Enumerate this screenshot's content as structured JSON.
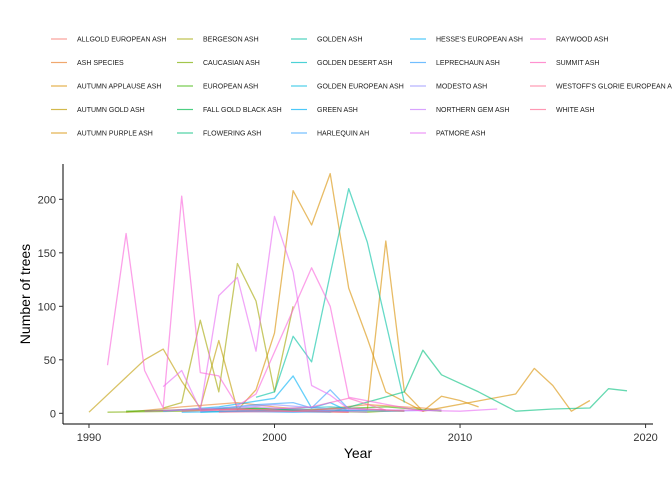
{
  "chart_data": {
    "type": "line",
    "xlabel": "Year",
    "ylabel": "Number of trees",
    "xlim": [
      1988.6,
      2020.4
    ],
    "ylim": [
      -10,
      233
    ],
    "x_ticks": [
      1990,
      2000,
      2010,
      2020
    ],
    "y_ticks": [
      0,
      50,
      100,
      150,
      200
    ],
    "grid": false,
    "legend_position": "top",
    "series": [
      {
        "name": "ALLGOLD EUROPEAN ASH",
        "color": "#F8766D",
        "points": [
          [
            1996,
            2
          ],
          [
            1999,
            3
          ],
          [
            2001,
            2
          ],
          [
            2004,
            1
          ]
        ]
      },
      {
        "name": "ASH SPECIES",
        "color": "#EA8331",
        "points": [
          [
            1992,
            1
          ],
          [
            1995,
            6
          ],
          [
            1998,
            10
          ],
          [
            2000,
            6
          ],
          [
            2002,
            3
          ],
          [
            2005,
            8
          ],
          [
            2008,
            5
          ],
          [
            2009,
            3
          ]
        ]
      },
      {
        "name": "AUTUMN APPLAUSE ASH",
        "color": "#D89000",
        "points": [
          [
            2005,
            3
          ],
          [
            2006,
            161
          ],
          [
            2007,
            20
          ],
          [
            2008,
            2
          ],
          [
            2013,
            18
          ],
          [
            2014,
            42
          ],
          [
            2015,
            26
          ],
          [
            2016,
            2
          ],
          [
            2017,
            12
          ]
        ]
      },
      {
        "name": "AUTUMN GOLD ASH",
        "color": "#C09B00",
        "points": [
          [
            1990,
            1
          ],
          [
            1993,
            50
          ],
          [
            1994,
            60
          ],
          [
            1995,
            30
          ],
          [
            1996,
            5
          ],
          [
            1997,
            68
          ],
          [
            1998,
            3
          ]
        ]
      },
      {
        "name": "AUTUMN PURPLE ASH",
        "color": "#D89000",
        "points": [
          [
            1998,
            3
          ],
          [
            1999,
            22
          ],
          [
            2000,
            75
          ],
          [
            2001,
            208
          ],
          [
            2002,
            176
          ],
          [
            2003,
            224
          ],
          [
            2004,
            117
          ],
          [
            2005,
            70
          ],
          [
            2006,
            20
          ],
          [
            2008,
            2
          ],
          [
            2009,
            16
          ],
          [
            2010,
            12
          ],
          [
            2011,
            6
          ]
        ]
      },
      {
        "name": "BERGESON ASH",
        "color": "#A3A500",
        "points": [
          [
            1994,
            5
          ],
          [
            1995,
            10
          ],
          [
            1996,
            87
          ],
          [
            1997,
            20
          ],
          [
            1998,
            140
          ],
          [
            1999,
            105
          ],
          [
            2000,
            20
          ],
          [
            2001,
            100
          ]
        ]
      },
      {
        "name": "CAUCASIAN ASH",
        "color": "#7CAE00",
        "points": [
          [
            1991,
            1
          ],
          [
            1995,
            2
          ],
          [
            1999,
            5
          ],
          [
            2002,
            2
          ],
          [
            2005,
            1
          ],
          [
            2007,
            3
          ]
        ]
      },
      {
        "name": "EUROPEAN ASH",
        "color": "#39B600",
        "points": [
          [
            1992,
            2
          ],
          [
            1997,
            4
          ],
          [
            2001,
            3
          ],
          [
            2006,
            6
          ],
          [
            2009,
            2
          ]
        ]
      },
      {
        "name": "FALL GOLD BLACK ASH",
        "color": "#00BB4E",
        "points": [
          [
            1993,
            2
          ],
          [
            1998,
            5
          ],
          [
            2002,
            3
          ],
          [
            2007,
            2
          ]
        ]
      },
      {
        "name": "FLOWERING ASH",
        "color": "#00BF7D",
        "points": [
          [
            2003,
            1
          ],
          [
            2007,
            20
          ],
          [
            2008,
            59
          ],
          [
            2009,
            36
          ],
          [
            2011,
            20
          ],
          [
            2013,
            2
          ],
          [
            2015,
            4
          ],
          [
            2017,
            5
          ],
          [
            2018,
            23
          ],
          [
            2019,
            21
          ]
        ]
      },
      {
        "name": "GOLDEN ASH",
        "color": "#00C1A3",
        "points": [
          [
            1999,
            15
          ],
          [
            2000,
            20
          ],
          [
            2001,
            72
          ],
          [
            2002,
            48
          ],
          [
            2003,
            130
          ],
          [
            2004,
            210
          ],
          [
            2005,
            160
          ],
          [
            2006,
            85
          ],
          [
            2007,
            10
          ]
        ]
      },
      {
        "name": "GOLDEN DESERT ASH",
        "color": "#00BFC4",
        "points": [
          [
            2000,
            4
          ],
          [
            2003,
            6
          ],
          [
            2006,
            3
          ]
        ]
      },
      {
        "name": "GOLDEN EUROPEAN ASH",
        "color": "#00BAE0",
        "points": [
          [
            1996,
            1
          ],
          [
            2000,
            3
          ],
          [
            2004,
            2
          ]
        ]
      },
      {
        "name": "GREEN ASH",
        "color": "#00B0F6",
        "points": [
          [
            1994,
            2
          ],
          [
            1997,
            6
          ],
          [
            2000,
            14
          ],
          [
            2001,
            35
          ],
          [
            2002,
            5
          ],
          [
            2003,
            10
          ],
          [
            2004,
            2
          ]
        ]
      },
      {
        "name": "HARLEQUIN AH",
        "color": "#35A2FF",
        "points": [
          [
            1996,
            3
          ],
          [
            1999,
            8
          ],
          [
            2001,
            10
          ],
          [
            2002,
            5
          ],
          [
            2003,
            22
          ],
          [
            2004,
            4
          ]
        ]
      },
      {
        "name": "HESSE'S EUROPEAN ASH",
        "color": "#00B0F6",
        "points": [
          [
            1995,
            1
          ],
          [
            1999,
            2
          ],
          [
            2003,
            1
          ]
        ]
      },
      {
        "name": "LEPRECHAUN ASH",
        "color": "#35A2FF",
        "points": [
          [
            1997,
            2
          ],
          [
            2001,
            1
          ],
          [
            2005,
            3
          ]
        ]
      },
      {
        "name": "MODESTO ASH",
        "color": "#9590FF",
        "points": [
          [
            1994,
            2
          ],
          [
            1997,
            5
          ],
          [
            2000,
            8
          ],
          [
            2003,
            4
          ],
          [
            2006,
            2
          ],
          [
            2009,
            3
          ]
        ]
      },
      {
        "name": "NORTHERN GEM ASH",
        "color": "#C77CFF",
        "points": [
          [
            1996,
            2
          ],
          [
            1999,
            6
          ],
          [
            2002,
            3
          ],
          [
            2005,
            1
          ]
        ]
      },
      {
        "name": "PATMORE ASH",
        "color": "#E76BF3",
        "points": [
          [
            1994,
            25
          ],
          [
            1995,
            40
          ],
          [
            1996,
            3
          ],
          [
            1997,
            110
          ],
          [
            1998,
            127
          ],
          [
            1999,
            58
          ],
          [
            2000,
            184
          ],
          [
            2001,
            132
          ],
          [
            2002,
            26
          ],
          [
            2003,
            17
          ],
          [
            2004,
            4
          ],
          [
            2007,
            3
          ],
          [
            2010,
            2
          ],
          [
            2012,
            4
          ]
        ]
      },
      {
        "name": "RAYWOOD ASH",
        "color": "#FA62DB",
        "points": [
          [
            1991,
            45
          ],
          [
            1992,
            168
          ],
          [
            1993,
            40
          ],
          [
            1994,
            5
          ],
          [
            1995,
            203
          ],
          [
            1996,
            38
          ],
          [
            1997,
            35
          ],
          [
            1998,
            7
          ],
          [
            1999,
            18
          ],
          [
            2002,
            136
          ],
          [
            2003,
            100
          ],
          [
            2004,
            15
          ],
          [
            2008,
            2
          ]
        ]
      },
      {
        "name": "SUMMIT ASH",
        "color": "#FF62BC",
        "points": [
          [
            1993,
            2
          ],
          [
            1996,
            4
          ],
          [
            1999,
            3
          ],
          [
            2002,
            6
          ],
          [
            2004,
            14
          ],
          [
            2006,
            3
          ]
        ]
      },
      {
        "name": "WESTOFF'S GLORIE EUROPEAN ASH",
        "color": "#FF6C91",
        "points": [
          [
            1997,
            1
          ],
          [
            2001,
            2
          ],
          [
            2004,
            1
          ]
        ]
      },
      {
        "name": "WHITE ASH",
        "color": "#FF6C91",
        "points": [
          [
            1995,
            2
          ],
          [
            1998,
            4
          ],
          [
            2001,
            2
          ],
          [
            2004,
            5
          ],
          [
            2007,
            2
          ]
        ]
      }
    ]
  }
}
